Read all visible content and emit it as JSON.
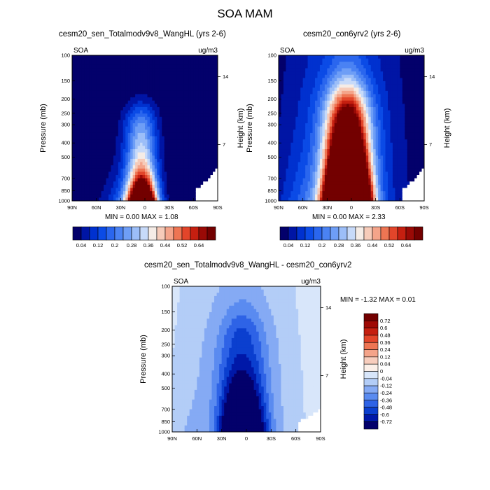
{
  "title": "SOA MAM",
  "chart_data": [
    {
      "type": "heatmap",
      "title": "cesm20_sen_Totalmodv9v8_WangHL (yrs 2-6)",
      "variable": "SOA",
      "units": "ug/m3",
      "xlabel": "",
      "ylabel": "Pressure (mb)",
      "ylabel_right": "Height (km)",
      "x_ticks": [
        "90N",
        "60N",
        "30N",
        "0",
        "30S",
        "60S",
        "90S"
      ],
      "y_ticks": [
        "100",
        "150",
        "200",
        "250",
        "300",
        "400",
        "500",
        "700",
        "850",
        "1000"
      ],
      "y_ticks_right": [
        "14",
        "7"
      ],
      "y_scale": "log",
      "ylim": [
        1000,
        100
      ],
      "xlim": [
        90,
        -90
      ],
      "min": "0.00",
      "max": "1.08",
      "min_label": "MIN =",
      "max_label": "MAX =",
      "colorbar_levels": [
        "0.04",
        "0.12",
        "0.2",
        "0.28",
        "0.36",
        "0.44",
        "0.52",
        "0.64"
      ],
      "legend_placement": "bottom"
    },
    {
      "type": "heatmap",
      "title": "cesm20_con6yrv2 (yrs 2-6)",
      "variable": "SOA",
      "units": "ug/m3",
      "xlabel": "",
      "ylabel": "Pressure (mb)",
      "ylabel_right": "Height (km)",
      "x_ticks": [
        "90N",
        "60N",
        "30N",
        "0",
        "30S",
        "60S",
        "90S"
      ],
      "y_ticks": [
        "100",
        "150",
        "200",
        "250",
        "300",
        "400",
        "500",
        "700",
        "850",
        "1000"
      ],
      "y_ticks_right": [
        "14",
        "7"
      ],
      "y_scale": "log",
      "ylim": [
        1000,
        100
      ],
      "xlim": [
        90,
        -90
      ],
      "min": "0.00",
      "max": "2.33",
      "min_label": "MIN =",
      "max_label": "MAX =",
      "colorbar_levels": [
        "0.04",
        "0.12",
        "0.2",
        "0.28",
        "0.36",
        "0.44",
        "0.52",
        "0.64"
      ],
      "legend_placement": "bottom"
    },
    {
      "type": "heatmap",
      "title": "cesm20_sen_Totalmodv9v8_WangHL - cesm20_con6yrv2",
      "variable": "SOA",
      "units": "ug/m3",
      "xlabel": "",
      "ylabel": "Pressure (mb)",
      "ylabel_right": "Height (km)",
      "x_ticks": [
        "90N",
        "60N",
        "30N",
        "0",
        "30S",
        "60S",
        "90S"
      ],
      "y_ticks": [
        "100",
        "150",
        "200",
        "250",
        "300",
        "400",
        "500",
        "700",
        "850",
        "1000"
      ],
      "y_ticks_right": [
        "14",
        "7"
      ],
      "y_scale": "log",
      "ylim": [
        1000,
        100
      ],
      "xlim": [
        90,
        -90
      ],
      "min": "-1.32",
      "max": "0.01",
      "min_label": "MIN =",
      "max_label": "MAX =",
      "colorbar_levels": [
        "0.72",
        "0.6",
        "0.48",
        "0.36",
        "0.24",
        "0.12",
        "0.04",
        "0",
        "-0.04",
        "-0.12",
        "-0.24",
        "-0.36",
        "-0.48",
        "-0.6",
        "-0.72"
      ],
      "legend_placement": "right"
    }
  ],
  "colors": {
    "seq_palette": [
      "#03006b",
      "#0015a5",
      "#0031cf",
      "#0b4be6",
      "#2a66ee",
      "#4a82f3",
      "#6e9ef6",
      "#9cbef8",
      "#c7daf9",
      "#f5ece6",
      "#f6cbb9",
      "#f4a48a",
      "#ee7553",
      "#e2452a",
      "#c51f10",
      "#9a0a06",
      "#730000"
    ],
    "div_palette": [
      "#730000",
      "#9f0905",
      "#c51f10",
      "#e2452a",
      "#ee7553",
      "#f4a48a",
      "#f7cdbd",
      "#fbefe8",
      "#d8e6fa",
      "#b3cdf7",
      "#85aaf4",
      "#5a8bf0",
      "#2e63e6",
      "#0b3fcf",
      "#0018a8",
      "#03006b"
    ]
  }
}
